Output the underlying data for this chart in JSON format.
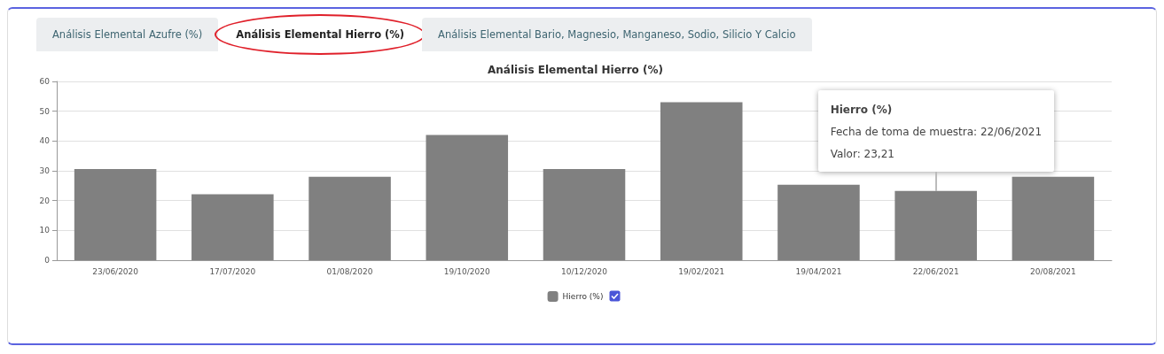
{
  "chart_data": {
    "type": "bar",
    "title": "Análisis Elemental Hierro (%)",
    "categories": [
      "23/06/2020",
      "17/07/2020",
      "01/08/2020",
      "19/10/2020",
      "10/12/2020",
      "19/02/2021",
      "19/04/2021",
      "22/06/2021",
      "20/08/2021"
    ],
    "series": [
      {
        "name": "Hierro (%)",
        "color": "#808080",
        "values": [
          30.6,
          22.1,
          28.0,
          42.0,
          30.6,
          53.0,
          25.3,
          23.21,
          28.0
        ]
      }
    ],
    "ylim": [
      0,
      60
    ],
    "yticks": [
      0,
      10,
      20,
      30,
      40,
      50,
      60
    ],
    "grid": "y",
    "legend": "bottom",
    "annotations": [
      "Análisis Elemental Azufre (%)",
      "Análisis Elemental Hierro (%)",
      "Análisis Elemental Bario, Magnesio, Manganeso, Sodio, Silicio Y Calcio",
      {
        "text": "Hierro (%)\nFecha de toma de muestra: 22/06/2021\nValor: 23,21",
        "x": "22/06/2021",
        "y": 23.21
      }
    ]
  }
}
